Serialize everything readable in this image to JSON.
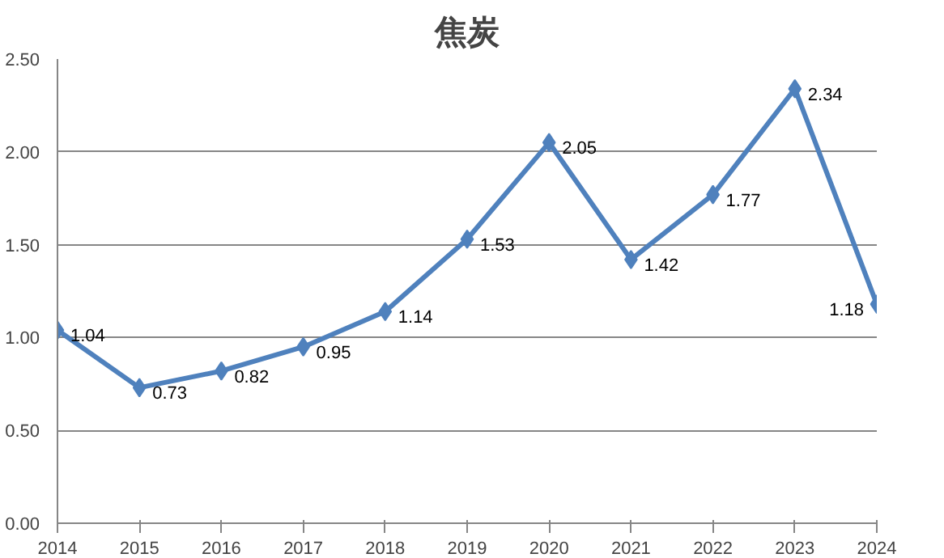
{
  "chart_data": {
    "type": "line",
    "title": "焦炭",
    "x": [
      2014,
      2015,
      2016,
      2017,
      2018,
      2019,
      2020,
      2021,
      2022,
      2023,
      2024
    ],
    "series": [
      {
        "color": "#4f81bd",
        "values": [
          1.04,
          0.73,
          0.82,
          0.95,
          1.14,
          1.53,
          2.05,
          1.42,
          1.77,
          2.34,
          1.18
        ]
      }
    ],
    "xlim": [
      2014,
      2024
    ],
    "xticks": [
      2014,
      2015,
      2016,
      2017,
      2018,
      2019,
      2020,
      2021,
      2022,
      2023,
      2024
    ],
    "ylim": [
      0,
      2.5
    ],
    "yticks": [
      {
        "value": 0,
        "label": "0.00"
      },
      {
        "value": 0.5,
        "label": "0.50"
      },
      {
        "value": 1,
        "label": "1.00"
      },
      {
        "value": 1.5,
        "label": "1.50"
      },
      {
        "value": 2,
        "label": "2.00"
      },
      {
        "value": 2.5,
        "label": "2.50"
      }
    ],
    "grid": "y",
    "marker": "diamond",
    "line_style": "solid",
    "data_labels": true
  }
}
